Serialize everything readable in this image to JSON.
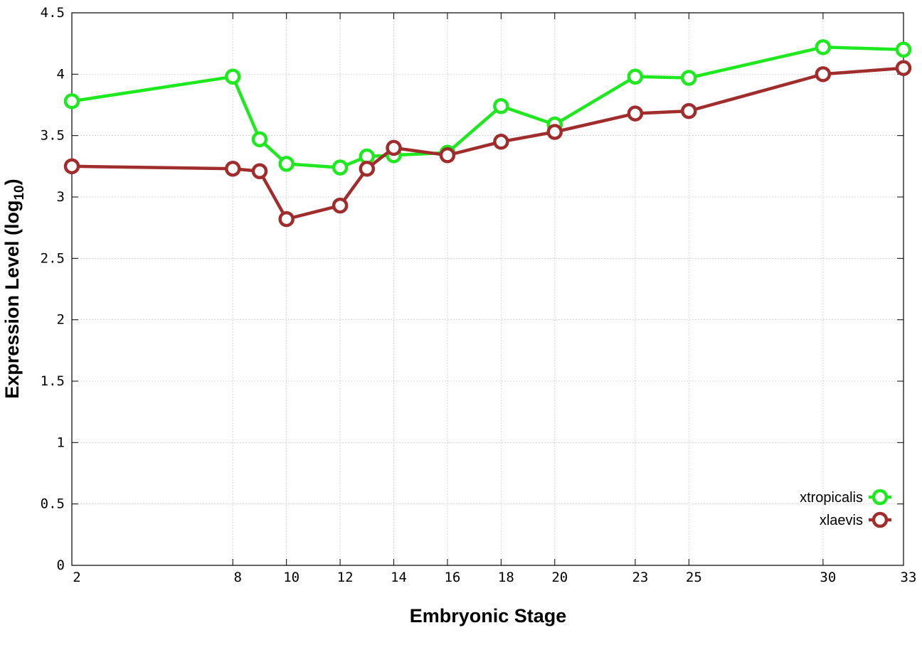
{
  "chart_data": {
    "type": "line",
    "title": "",
    "xlabel": "Embryonic Stage",
    "ylabel_main": "Expression Level (log",
    "ylabel_sub": "10",
    "ylabel_close": ")",
    "x": [
      2,
      8,
      9,
      10,
      12,
      13,
      14,
      16,
      18,
      20,
      23,
      25,
      30,
      33
    ],
    "xticks": [
      2,
      8,
      10,
      12,
      14,
      16,
      18,
      20,
      23,
      25,
      30,
      33
    ],
    "yticks": [
      0,
      0.5,
      1,
      1.5,
      2,
      2.5,
      3,
      3.5,
      4,
      4.5
    ],
    "xlim": [
      2,
      33
    ],
    "ylim": [
      0,
      4.5
    ],
    "grid": true,
    "legend_position": "bottom-right",
    "series": [
      {
        "name": "xtropicalis",
        "color": "#1ee81e",
        "values": [
          3.78,
          3.98,
          3.47,
          3.27,
          3.24,
          3.33,
          3.34,
          3.36,
          3.74,
          3.59,
          3.98,
          3.97,
          4.22,
          4.2
        ]
      },
      {
        "name": "xlaevis",
        "color": "#a02c2c",
        "values": [
          3.25,
          3.23,
          3.21,
          2.82,
          2.93,
          3.23,
          3.4,
          3.34,
          3.45,
          3.53,
          3.68,
          3.7,
          4.0,
          4.05
        ]
      }
    ]
  }
}
